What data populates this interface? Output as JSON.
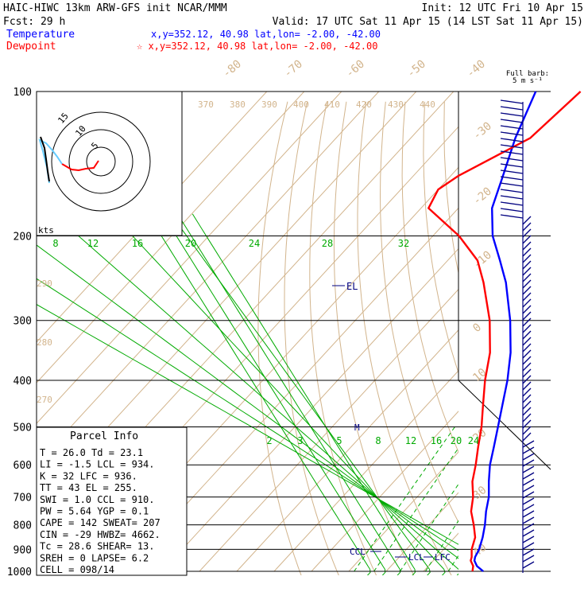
{
  "header": {
    "line1_left": "HAIC-HIWC 13km ARW-GFS init   NCAR/MMM",
    "line1_right": "Init: 12 UTC Fri 10 Apr 15",
    "line2_left": "Fcst:    29 h",
    "line2_right": "Valid: 17 UTC Sat 11 Apr 15 (14 LST Sat 11 Apr 15)",
    "temp_label": "Temperature",
    "temp_loc": "x,y=352.12, 40.98     lat,lon= -2.00, -42.00",
    "dew_label": "Dewpoint",
    "dew_loc": "☆ x,y=352.12, 40.98     lat,lon= -2.00, -42.00"
  },
  "barb_title": [
    "Full barb:",
    "5 m s⁻¹"
  ],
  "hodograph_label": "kts",
  "hodo_rings": [
    "5",
    "10",
    "15"
  ],
  "parcel": {
    "title": "Parcel Info",
    "rows": [
      "T  =    26.0 Td =  23.1",
      "LI =    -1.5 LCL =  934.",
      "K  =     32 LFC =  936.",
      "TT =     43 EL  =  255.",
      "SWI =    1.0 CCL =  910.",
      "PW =   5.64 YGP =   0.1",
      "CAPE =   142 SWEAT=  207",
      "CIN =   -29 HWBZ= 4662.",
      "Tc =   28.6 SHEAR=  13.",
      "SREH =     0 LAPSE=  6.2",
      "CELL = 098/14"
    ]
  },
  "markers": {
    "el": "EL",
    "m": "M",
    "lcl": "LCL",
    "lfc": "LFC",
    "ccl": "CCL"
  },
  "colors": {
    "temperature": "#0000ff",
    "dewpoint": "#ff0000",
    "isotherm": "#d2b48c",
    "theta_w": "#00aa00",
    "barbs": "#000080",
    "hodo_low": "#ff0000",
    "hodo_high": "#66ccff"
  },
  "chart_data": {
    "type": "line",
    "chart_kind": "skew-T log-p",
    "y_axis": {
      "label": "pressure (hPa)",
      "log_scale": true,
      "range": [
        1000,
        100
      ],
      "ticks": [
        100,
        200,
        300,
        400,
        500,
        600,
        700,
        800,
        900,
        1000
      ]
    },
    "isotherm_labels": [
      "-80",
      "-70",
      "-60",
      "-50",
      "-40",
      "-30",
      "-20",
      "-10",
      "0",
      "10",
      "20",
      "30",
      "40"
    ],
    "theta_labels": [
      "370",
      "380",
      "390",
      "400",
      "410",
      "420",
      "430",
      "440",
      "290",
      "280",
      "270"
    ],
    "theta_w_labels_upper": [
      "8",
      "12",
      "16",
      "20",
      "24",
      "28",
      "32"
    ],
    "mixing_ratio_labels": [
      "2",
      "3",
      "5",
      "8",
      "12",
      "16",
      "20",
      "24"
    ],
    "series": [
      {
        "name": "Temperature",
        "points": [
          [
            1000,
            26.0
          ],
          [
            975,
            23.0
          ],
          [
            950,
            21.0
          ],
          [
            934,
            20.3
          ],
          [
            900,
            19.5
          ],
          [
            850,
            17.5
          ],
          [
            800,
            15.0
          ],
          [
            750,
            12.0
          ],
          [
            700,
            9.2
          ],
          [
            650,
            5.4
          ],
          [
            600,
            1.6
          ],
          [
            550,
            -1.8
          ],
          [
            500,
            -5.6
          ],
          [
            450,
            -9.8
          ],
          [
            400,
            -14.5
          ],
          [
            350,
            -20.5
          ],
          [
            300,
            -28.5
          ],
          [
            250,
            -39.0
          ],
          [
            225,
            -46.0
          ],
          [
            200,
            -54.0
          ],
          [
            175,
            -61.0
          ],
          [
            150,
            -66.0
          ],
          [
            125,
            -72.0
          ],
          [
            100,
            -78.0
          ]
        ]
      },
      {
        "name": "Dewpoint",
        "points": [
          [
            1000,
            23.1
          ],
          [
            975,
            22.0
          ],
          [
            950,
            20.0
          ],
          [
            934,
            19.4
          ],
          [
            900,
            17.5
          ],
          [
            850,
            15.5
          ],
          [
            800,
            12.0
          ],
          [
            750,
            8.0
          ],
          [
            700,
            5.0
          ],
          [
            650,
            1.0
          ],
          [
            600,
            -2.2
          ],
          [
            550,
            -6.0
          ],
          [
            500,
            -10.0
          ],
          [
            450,
            -15.0
          ],
          [
            400,
            -20.5
          ],
          [
            350,
            -26.0
          ],
          [
            300,
            -34.0
          ],
          [
            250,
            -45.0
          ],
          [
            225,
            -52.0
          ],
          [
            200,
            -63.0
          ],
          [
            175,
            -78.0
          ],
          [
            160,
            -80.0
          ],
          [
            150,
            -78.0
          ],
          [
            125,
            -68.0
          ],
          [
            100,
            -66.0
          ]
        ]
      }
    ]
  }
}
